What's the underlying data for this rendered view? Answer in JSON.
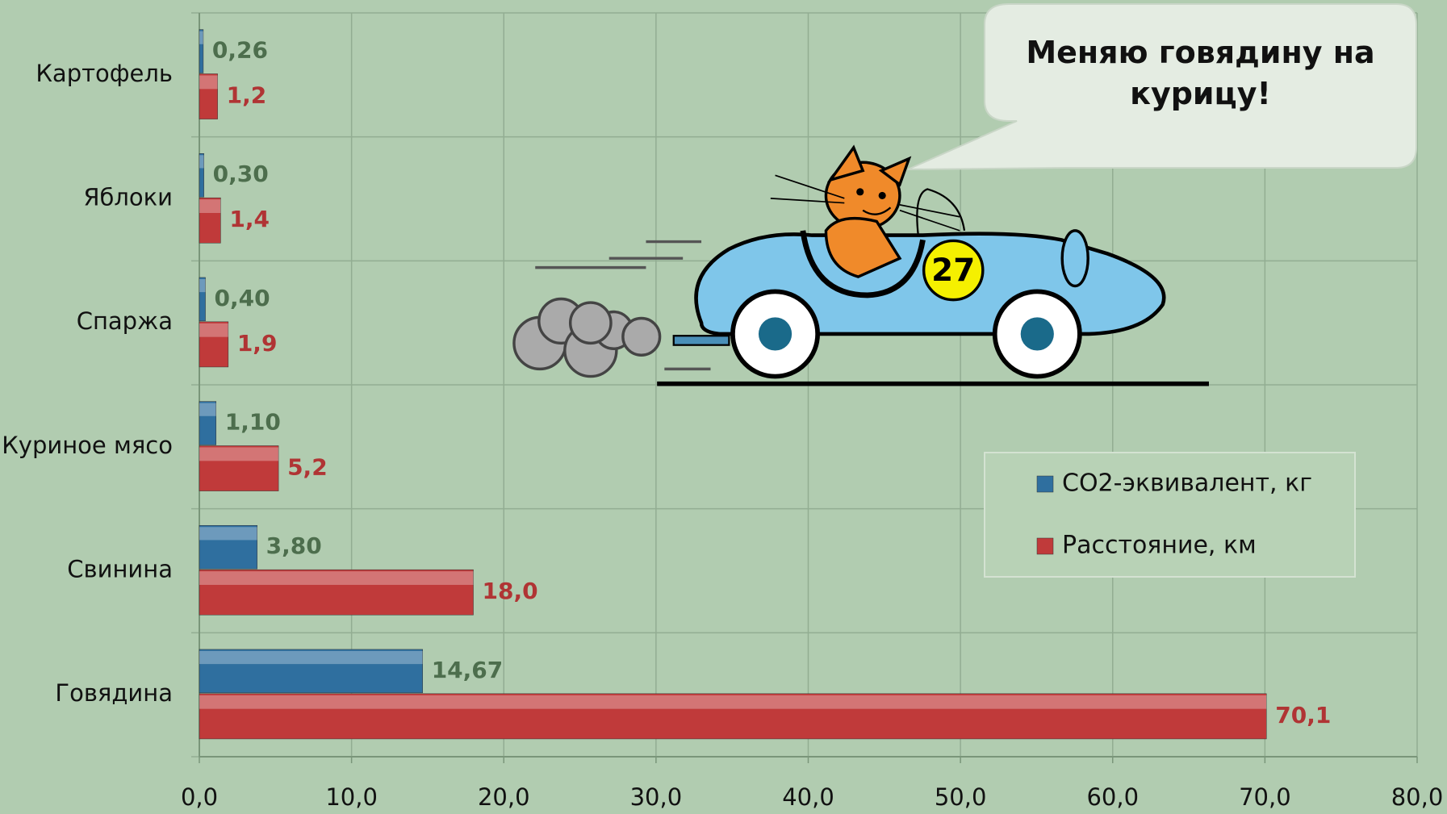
{
  "chart_data": {
    "type": "bar",
    "orientation": "horizontal",
    "categories": [
      "Картофель",
      "Яблоки",
      "Спаржа",
      "Куриное мясо",
      "Свинина",
      "Говядина"
    ],
    "series": [
      {
        "name": "CO2-эквивалент, кг",
        "color": "#2f6f9f",
        "label_color": "#4d6e4d",
        "values": [
          0.26,
          0.3,
          0.4,
          1.1,
          3.8,
          14.67
        ],
        "value_labels": [
          "0,26",
          "0,30",
          "0,40",
          "1,10",
          "3,80",
          "14,67"
        ]
      },
      {
        "name": "Расстояние, км",
        "color": "#c03a3a",
        "label_color": "#b03434",
        "values": [
          1.2,
          1.4,
          1.9,
          5.2,
          18.0,
          70.1
        ],
        "value_labels": [
          "1,2",
          "1,4",
          "1,9",
          "5,2",
          "18,0",
          "70,1"
        ]
      }
    ],
    "xlim": [
      0,
      80
    ],
    "xticks": [
      {
        "value": 0,
        "label": "0,0"
      },
      {
        "value": 10,
        "label": "10,0"
      },
      {
        "value": 20,
        "label": "20,0"
      },
      {
        "value": 30,
        "label": "30,0"
      },
      {
        "value": 40,
        "label": "40,0"
      },
      {
        "value": 50,
        "label": "50,0"
      },
      {
        "value": 60,
        "label": "60,0"
      },
      {
        "value": 70,
        "label": "70,0"
      },
      {
        "value": 80,
        "label": "80,0"
      }
    ],
    "grid": true,
    "annotations": [
      "Меняю говядину на курицу!",
      "27"
    ]
  }
}
